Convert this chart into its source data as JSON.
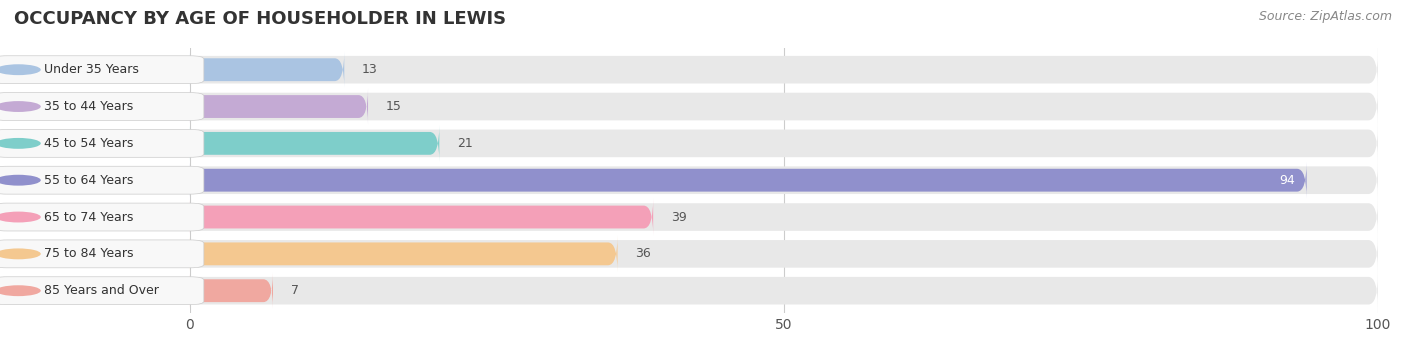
{
  "title": "OCCUPANCY BY AGE OF HOUSEHOLDER IN LEWIS",
  "source": "Source: ZipAtlas.com",
  "categories": [
    "Under 35 Years",
    "35 to 44 Years",
    "45 to 54 Years",
    "55 to 64 Years",
    "65 to 74 Years",
    "75 to 84 Years",
    "85 Years and Over"
  ],
  "values": [
    13,
    15,
    21,
    94,
    39,
    36,
    7
  ],
  "bar_colors": [
    "#aac4e2",
    "#c4aad4",
    "#7ececa",
    "#9090cc",
    "#f4a0b8",
    "#f4c890",
    "#f0a8a0"
  ],
  "bar_bg_color": "#e8e8e8",
  "label_bg_color": "#f8f8f8",
  "xlim": [
    0,
    100
  ],
  "label_color_inside": "#ffffff",
  "label_color_outside": "#555555",
  "title_fontsize": 13,
  "source_fontsize": 9,
  "tick_fontsize": 10,
  "value_fontsize": 9,
  "category_fontsize": 9,
  "fig_width": 14.06,
  "fig_height": 3.4,
  "dpi": 100
}
